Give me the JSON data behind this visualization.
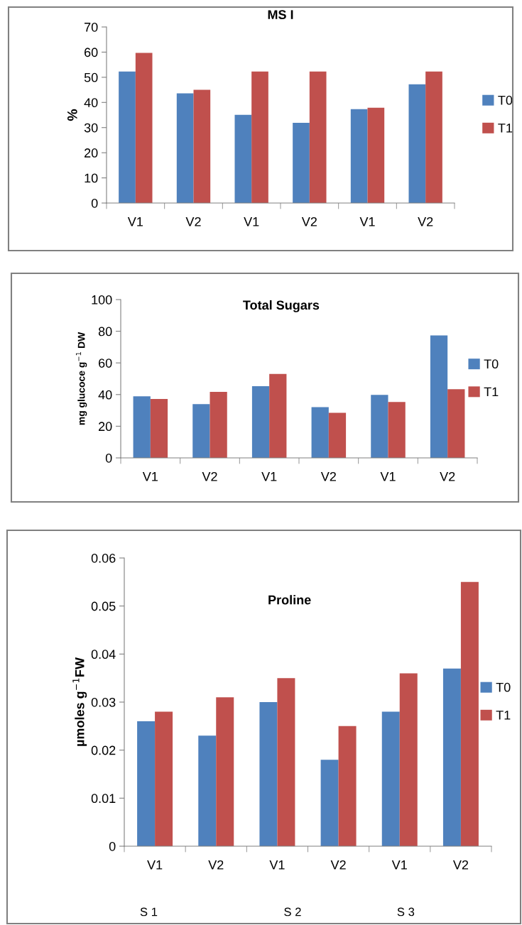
{
  "chart_data": [
    {
      "type": "bar",
      "title": "MS I",
      "ylabel": "%",
      "categories": [
        "V1",
        "V2",
        "V1",
        "V2",
        "V1",
        "V2"
      ],
      "series": [
        {
          "name": "T0",
          "color": "#4f81bd",
          "values": [
            52.3,
            43.6,
            35.1,
            31.9,
            37.3,
            47.2
          ]
        },
        {
          "name": "T1",
          "color": "#c0504d",
          "values": [
            59.7,
            45.0,
            52.3,
            52.3,
            37.9,
            52.3
          ]
        }
      ],
      "ylim": [
        0,
        70
      ],
      "yticks": [
        0,
        10,
        20,
        30,
        40,
        50,
        60,
        70
      ],
      "grid": false,
      "legend": "right"
    },
    {
      "type": "bar",
      "title": "Total Sugars",
      "ylabel": "mg glucoce g$^{−1}$ DW",
      "categories": [
        "V1",
        "V2",
        "V1",
        "V2",
        "V1",
        "V2"
      ],
      "series": [
        {
          "name": "T0",
          "color": "#4f81bd",
          "values": [
            38.9,
            34.0,
            45.3,
            32.1,
            39.8,
            77.4
          ]
        },
        {
          "name": "T1",
          "color": "#c0504d",
          "values": [
            37.2,
            41.7,
            53.0,
            28.5,
            35.3,
            43.4
          ]
        }
      ],
      "ylim": [
        0,
        100
      ],
      "yticks": [
        0,
        20,
        40,
        60,
        80,
        100
      ],
      "grid": false,
      "legend": "right"
    },
    {
      "type": "bar",
      "title": "Proline",
      "ylabel": "µmoles g$^{−1}$FW",
      "categories": [
        "V1",
        "V2",
        "V1",
        "V2",
        "V1",
        "V2"
      ],
      "series": [
        {
          "name": "T0",
          "color": "#4f81bd",
          "values": [
            0.026,
            0.023,
            0.03,
            0.018,
            0.028,
            0.037
          ]
        },
        {
          "name": "T1",
          "color": "#c0504d",
          "values": [
            0.028,
            0.031,
            0.035,
            0.025,
            0.036,
            0.055
          ]
        }
      ],
      "ylim": [
        0,
        0.06
      ],
      "yticks": [
        0,
        0.01,
        0.02,
        0.03,
        0.04,
        0.05,
        0.06
      ],
      "grid": false,
      "legend": "right",
      "annotations": [
        "S 1",
        "S 2",
        "S 3"
      ]
    }
  ]
}
